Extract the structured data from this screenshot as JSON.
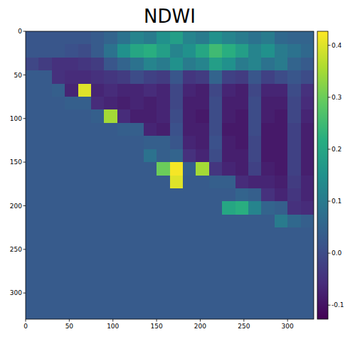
{
  "chart_data": {
    "type": "heatmap",
    "title": "NDWI",
    "color": "viridis",
    "xlim": [
      0,
      330
    ],
    "ylim": [
      330,
      0
    ],
    "xticks": [
      0,
      50,
      100,
      150,
      200,
      250,
      300
    ],
    "yticks": [
      0,
      50,
      100,
      150,
      200,
      250,
      300
    ],
    "color_range": [
      -0.127,
      0.427
    ],
    "color_ticks": [
      -0.1,
      {
        "value": 0,
        "label": "0.0"
      },
      0.1,
      0.2,
      0.3,
      0.4
    ],
    "cells": [
      [
        0.02,
        0.02,
        0.02,
        0.02,
        0.02,
        0.03,
        0.05,
        0.08,
        0.12,
        0.1,
        0.15,
        0.18,
        0.12,
        0.1,
        0.15,
        0.12,
        0.1,
        0.08,
        0.1,
        0.06,
        0.05,
        0.05
      ],
      [
        0.02,
        0.02,
        0.02,
        0.01,
        0.0,
        0.03,
        0.08,
        0.15,
        0.2,
        0.22,
        0.18,
        0.12,
        0.15,
        0.2,
        0.25,
        0.22,
        0.18,
        0.12,
        0.15,
        0.1,
        0.08,
        0.06
      ],
      [
        -0.01,
        -0.03,
        -0.05,
        -0.05,
        -0.04,
        -0.03,
        0.02,
        0.05,
        0.08,
        0.12,
        0.1,
        0.15,
        0.1,
        0.12,
        0.18,
        0.15,
        0.1,
        0.12,
        0.08,
        0.1,
        0.05,
        0.03
      ],
      [
        0.03,
        0.03,
        -0.05,
        -0.06,
        -0.06,
        -0.05,
        -0.04,
        -0.03,
        0.0,
        -0.02,
        -0.03,
        0.02,
        -0.04,
        -0.03,
        0.05,
        -0.02,
        -0.03,
        0.02,
        -0.02,
        0.0,
        0.02,
        0.0
      ],
      [
        0.03,
        0.03,
        0.04,
        -0.07,
        0.4,
        -0.07,
        -0.06,
        -0.07,
        -0.07,
        -0.06,
        -0.07,
        -0.01,
        -0.07,
        -0.08,
        -0.01,
        -0.07,
        -0.08,
        -0.01,
        -0.07,
        -0.07,
        0.0,
        -0.05
      ],
      [
        0.03,
        0.03,
        0.03,
        0.04,
        0.04,
        -0.06,
        -0.07,
        -0.08,
        -0.07,
        -0.08,
        -0.07,
        -0.01,
        -0.08,
        -0.08,
        0.0,
        -0.08,
        -0.08,
        0.0,
        -0.08,
        -0.08,
        -0.01,
        -0.06
      ],
      [
        0.03,
        0.03,
        0.03,
        0.03,
        0.03,
        0.04,
        0.35,
        -0.06,
        -0.08,
        -0.08,
        -0.07,
        0.0,
        -0.08,
        -0.09,
        0.0,
        -0.08,
        -0.09,
        0.0,
        -0.08,
        -0.09,
        -0.01,
        -0.07
      ],
      [
        0.03,
        0.03,
        0.03,
        0.03,
        0.03,
        0.03,
        0.03,
        0.04,
        0.04,
        -0.07,
        -0.08,
        0.01,
        -0.08,
        -0.08,
        0.0,
        -0.09,
        -0.09,
        0.0,
        -0.09,
        -0.09,
        -0.02,
        -0.08
      ],
      [
        0.03,
        0.03,
        0.03,
        0.03,
        0.03,
        0.03,
        0.03,
        0.03,
        0.03,
        0.04,
        0.04,
        0.02,
        -0.07,
        -0.08,
        0.01,
        -0.08,
        -0.09,
        -0.01,
        -0.09,
        -0.09,
        -0.02,
        -0.08
      ],
      [
        0.03,
        0.03,
        0.03,
        0.03,
        0.03,
        0.03,
        0.03,
        0.03,
        0.03,
        0.08,
        0.04,
        0.05,
        -0.05,
        -0.07,
        0.0,
        -0.08,
        -0.08,
        -0.01,
        -0.09,
        -0.09,
        -0.02,
        -0.08
      ],
      [
        0.03,
        0.03,
        0.03,
        0.03,
        0.03,
        0.03,
        0.03,
        0.03,
        0.03,
        0.03,
        0.3,
        0.42,
        0.04,
        0.35,
        -0.04,
        -0.07,
        -0.08,
        -0.02,
        -0.08,
        -0.09,
        -0.02,
        -0.08
      ],
      [
        0.03,
        0.03,
        0.03,
        0.03,
        0.03,
        0.03,
        0.03,
        0.03,
        0.03,
        0.03,
        0.03,
        0.4,
        0.03,
        0.03,
        0.04,
        0.04,
        -0.06,
        -0.07,
        -0.07,
        -0.08,
        -0.03,
        -0.07
      ],
      [
        0.03,
        0.03,
        0.03,
        0.03,
        0.03,
        0.03,
        0.03,
        0.03,
        0.03,
        0.03,
        0.03,
        0.03,
        0.03,
        0.03,
        0.03,
        0.03,
        0.05,
        0.04,
        -0.05,
        -0.07,
        -0.04,
        -0.07
      ],
      [
        0.03,
        0.03,
        0.03,
        0.03,
        0.03,
        0.03,
        0.03,
        0.03,
        0.03,
        0.03,
        0.03,
        0.03,
        0.03,
        0.03,
        0.03,
        0.2,
        0.22,
        0.12,
        0.05,
        0.04,
        -0.05,
        -0.06
      ],
      [
        0.03,
        0.03,
        0.03,
        0.03,
        0.03,
        0.03,
        0.03,
        0.03,
        0.03,
        0.03,
        0.03,
        0.03,
        0.03,
        0.03,
        0.03,
        0.03,
        0.03,
        0.03,
        0.03,
        0.1,
        0.06,
        0.04
      ],
      [
        0.03,
        0.03,
        0.03,
        0.03,
        0.03,
        0.03,
        0.03,
        0.03,
        0.03,
        0.03,
        0.03,
        0.03,
        0.03,
        0.03,
        0.03,
        0.03,
        0.03,
        0.03,
        0.03,
        0.03,
        0.03,
        0.03
      ],
      [
        0.03,
        0.03,
        0.03,
        0.03,
        0.03,
        0.03,
        0.03,
        0.03,
        0.03,
        0.03,
        0.03,
        0.03,
        0.03,
        0.03,
        0.03,
        0.03,
        0.03,
        0.03,
        0.03,
        0.03,
        0.03,
        0.03
      ],
      [
        0.03,
        0.03,
        0.03,
        0.03,
        0.03,
        0.03,
        0.03,
        0.03,
        0.03,
        0.03,
        0.03,
        0.03,
        0.03,
        0.03,
        0.03,
        0.03,
        0.03,
        0.03,
        0.03,
        0.03,
        0.03,
        0.03
      ],
      [
        0.03,
        0.03,
        0.03,
        0.03,
        0.03,
        0.03,
        0.03,
        0.03,
        0.03,
        0.03,
        0.03,
        0.03,
        0.03,
        0.03,
        0.03,
        0.03,
        0.03,
        0.03,
        0.03,
        0.03,
        0.03,
        0.03
      ],
      [
        0.03,
        0.03,
        0.03,
        0.03,
        0.03,
        0.03,
        0.03,
        0.03,
        0.03,
        0.03,
        0.03,
        0.03,
        0.03,
        0.03,
        0.03,
        0.03,
        0.03,
        0.03,
        0.03,
        0.03,
        0.03,
        0.03
      ],
      [
        0.03,
        0.03,
        0.03,
        0.03,
        0.03,
        0.03,
        0.03,
        0.03,
        0.03,
        0.03,
        0.03,
        0.03,
        0.03,
        0.03,
        0.03,
        0.03,
        0.03,
        0.03,
        0.03,
        0.03,
        0.03,
        0.03
      ],
      [
        0.03,
        0.03,
        0.03,
        0.03,
        0.03,
        0.03,
        0.03,
        0.03,
        0.03,
        0.03,
        0.03,
        0.03,
        0.03,
        0.03,
        0.03,
        0.03,
        0.03,
        0.03,
        0.03,
        0.03,
        0.03,
        0.03
      ]
    ]
  }
}
